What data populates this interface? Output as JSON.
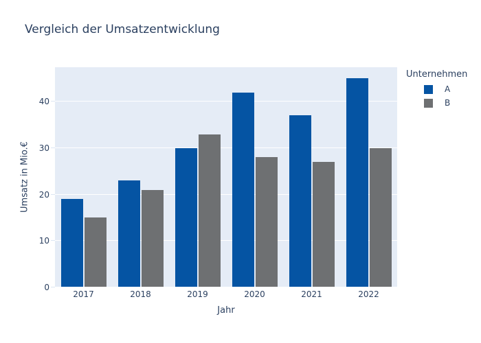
{
  "colors": {
    "text": "#2a3f5f",
    "plot_background": "#e5ecf6",
    "gridline": "#ffffff",
    "series_a": "#0554a3",
    "series_b": "#6e7072"
  },
  "chart_data": {
    "type": "bar",
    "title": "Vergleich der Umsatzentwicklung",
    "categories": [
      "2017",
      "2018",
      "2019",
      "2020",
      "2021",
      "2022"
    ],
    "series": [
      {
        "name": "A",
        "color": "#0554a3",
        "values": [
          19,
          23,
          30,
          42,
          37,
          45
        ]
      },
      {
        "name": "B",
        "color": "#6e7072",
        "values": [
          15,
          21,
          33,
          28,
          27,
          30
        ]
      }
    ],
    "xlabel": "Jahr",
    "ylabel": "Umsatz in Mio.€",
    "ylim": [
      0,
      47.4
    ],
    "yticks": [
      0,
      10,
      20,
      30,
      40
    ],
    "grid": true,
    "legend_title": "Unternehmen",
    "legend_position": "right"
  }
}
